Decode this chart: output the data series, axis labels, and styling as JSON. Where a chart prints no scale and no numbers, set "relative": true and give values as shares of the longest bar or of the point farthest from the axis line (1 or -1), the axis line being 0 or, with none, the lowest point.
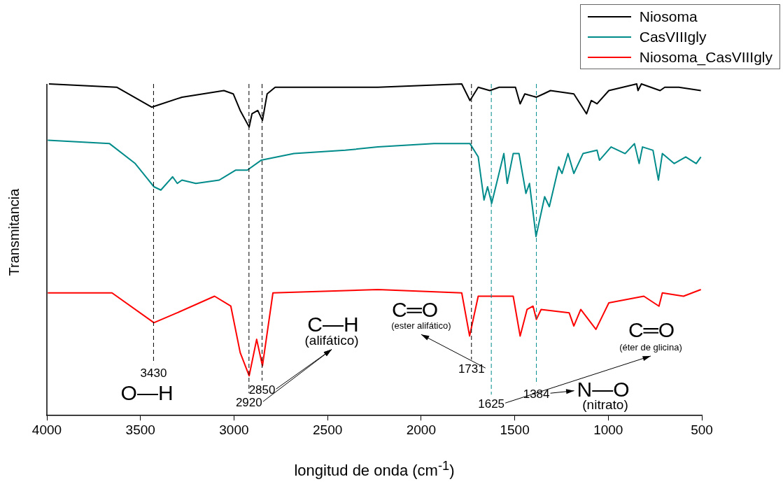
{
  "chart_data": {
    "type": "line",
    "relative": true,
    "xlabel": "longitud de onda (cm$^{-1}$)",
    "ylabel": "Transmitancia",
    "xlim": [
      4000,
      500
    ],
    "xticks": [
      4000,
      3500,
      3000,
      2500,
      2000,
      1500,
      1000,
      500
    ],
    "legend": "top right",
    "grid": false,
    "marker": "none",
    "line_style": "solid",
    "series": [
      {
        "name": "Niosoma",
        "color": "#000000",
        "x": [
          3989,
          3627,
          3440,
          3278,
          3054,
          3004,
          2967,
          2919,
          2904,
          2873,
          2848,
          2823,
          2780,
          2231,
          1783,
          1739,
          1695,
          1633,
          1583,
          1496,
          1471,
          1446,
          1384,
          1346,
          1309,
          1184,
          1116,
          1091,
          1060,
          997,
          848,
          841,
          823,
          723,
          698,
          623,
          505
        ],
        "values": [
          1.0,
          0.99,
          0.93,
          0.96,
          0.98,
          0.97,
          0.92,
          0.87,
          0.91,
          0.92,
          0.89,
          0.97,
          0.99,
          0.99,
          1.0,
          0.95,
          0.99,
          0.98,
          0.99,
          0.99,
          0.94,
          0.97,
          0.96,
          0.97,
          0.98,
          0.97,
          0.91,
          0.95,
          0.94,
          0.98,
          1.0,
          0.98,
          1.0,
          0.98,
          0.99,
          0.99,
          0.98
        ]
      },
      {
        "name": "CasVIIIgly",
        "color": "#008b8b",
        "x": [
          3995,
          3665,
          3528,
          3428,
          3391,
          3328,
          3303,
          3278,
          3204,
          3079,
          2992,
          2929,
          2855,
          2680,
          2406,
          2231,
          1932,
          1739,
          1695,
          1664,
          1645,
          1623,
          1558,
          1540,
          1508,
          1477,
          1440,
          1421,
          1386,
          1340,
          1315,
          1265,
          1247,
          1215,
          1184,
          1135,
          1060,
          1047,
          985,
          910,
          860,
          835,
          817,
          761,
          732,
          711,
          648,
          586,
          530,
          505
        ],
        "values": [
          0.83,
          0.82,
          0.76,
          0.69,
          0.68,
          0.72,
          0.7,
          0.71,
          0.7,
          0.71,
          0.74,
          0.74,
          0.77,
          0.79,
          0.8,
          0.81,
          0.82,
          0.82,
          0.78,
          0.65,
          0.69,
          0.64,
          0.79,
          0.7,
          0.79,
          0.79,
          0.67,
          0.7,
          0.54,
          0.66,
          0.63,
          0.75,
          0.73,
          0.79,
          0.73,
          0.79,
          0.8,
          0.77,
          0.81,
          0.79,
          0.82,
          0.76,
          0.81,
          0.8,
          0.71,
          0.79,
          0.76,
          0.78,
          0.76,
          0.78
        ]
      },
      {
        "name": "Niosoma_CasVIIIgly",
        "color": "#ff0000",
        "x": [
          3995,
          3652,
          3428,
          3303,
          3104,
          3017,
          2967,
          2919,
          2879,
          2848,
          2792,
          2231,
          1783,
          1741,
          1695,
          1508,
          1471,
          1434,
          1402,
          1384,
          1359,
          1209,
          1184,
          1147,
          1066,
          997,
          810,
          729,
          711,
          598,
          505
        ],
        "values": [
          0.37,
          0.37,
          0.28,
          0.31,
          0.36,
          0.33,
          0.19,
          0.12,
          0.23,
          0.15,
          0.37,
          0.38,
          0.37,
          0.24,
          0.36,
          0.36,
          0.24,
          0.32,
          0.33,
          0.29,
          0.32,
          0.31,
          0.27,
          0.32,
          0.26,
          0.34,
          0.36,
          0.33,
          0.37,
          0.36,
          0.38
        ]
      }
    ],
    "ref_lines": [
      {
        "axis": "x",
        "value": 3430,
        "label": "3430",
        "color": "#000000",
        "line_style": "dashed"
      },
      {
        "axis": "x",
        "value": 2920,
        "label": "2920",
        "color": "#000000",
        "line_style": "dashed"
      },
      {
        "axis": "x",
        "value": 2850,
        "label": "2850",
        "color": "#000000",
        "line_style": "dashed"
      },
      {
        "axis": "x",
        "value": 1731,
        "label": "1731",
        "color": "#000000",
        "line_style": "dashed"
      },
      {
        "axis": "x",
        "value": 1625,
        "label": "1625",
        "color": "#008b8b",
        "line_style": "dashed"
      },
      {
        "axis": "x",
        "value": 1384,
        "label": "1384",
        "color": "#008b8b",
        "line_style": "dashed"
      }
    ],
    "annotations": [
      "O—H",
      "C—H",
      "(alifático)",
      "C═O",
      "(ester alifático)",
      "C═O",
      "(éter de glicina)",
      "N—O",
      "(nitrato)"
    ]
  }
}
